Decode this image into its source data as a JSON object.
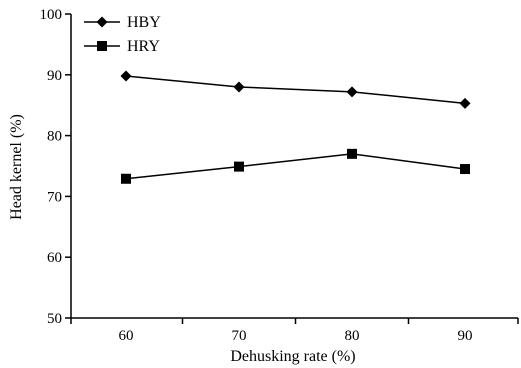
{
  "chart_data": {
    "type": "line",
    "xlabel": "Dehusking rate (%)",
    "ylabel": "Head kernel (%)",
    "categories": [
      "60",
      "70",
      "80",
      "90"
    ],
    "x": [
      60,
      70,
      80,
      90
    ],
    "ylim": [
      50,
      100
    ],
    "yticks": [
      "50",
      "60",
      "70",
      "80",
      "90",
      "100"
    ],
    "grid": false,
    "legend_position": "top-left",
    "series": [
      {
        "name": "HBY",
        "marker": "diamond",
        "values": [
          89.8,
          88.0,
          87.2,
          85.3
        ]
      },
      {
        "name": "HRY",
        "marker": "square",
        "values": [
          72.9,
          74.9,
          77.0,
          74.5
        ]
      }
    ]
  }
}
